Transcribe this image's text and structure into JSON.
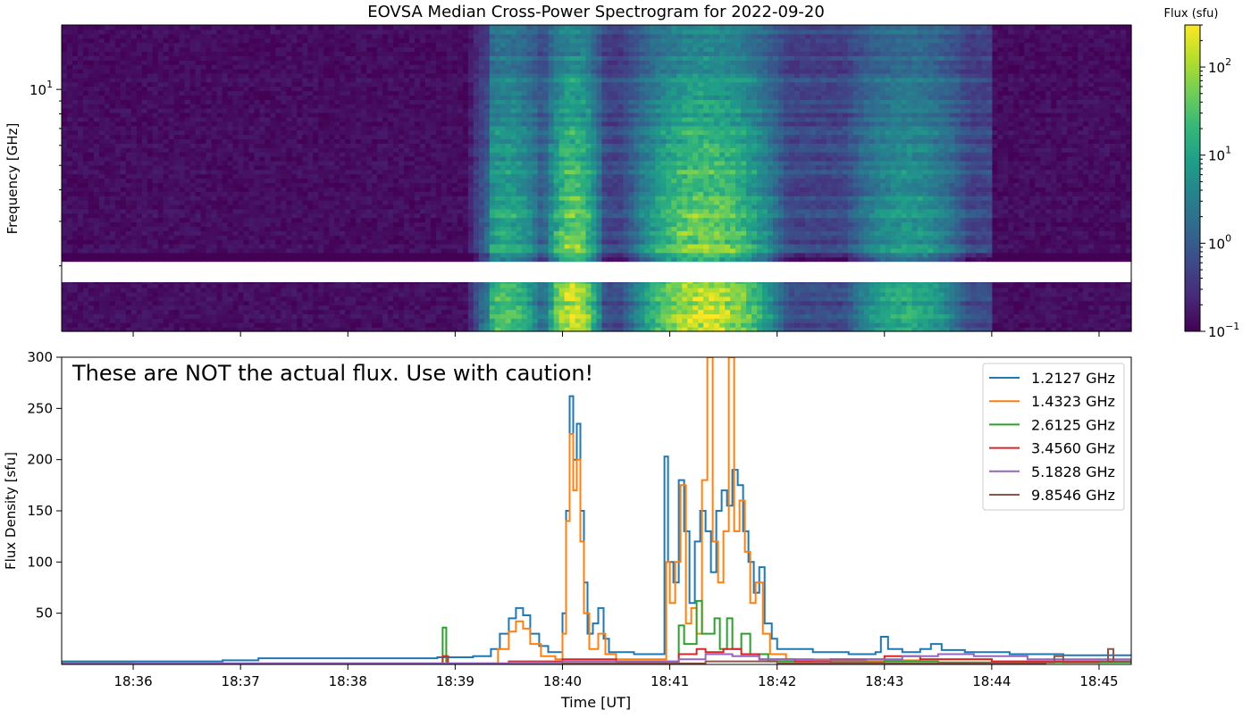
{
  "chart_data": [
    {
      "type": "heatmap",
      "title": "EOVSA Median Cross-Power Spectrogram for 2022-09-20",
      "xlabel": "",
      "ylabel": "Frequency [GHz]",
      "y_scale": "log",
      "y_tick_labels": [
        {
          "label": "10",
          "exponent": "1",
          "value": 10
        }
      ],
      "y_minor_ticks": [
        2,
        3,
        4,
        5,
        6,
        7,
        8,
        9
      ],
      "ylim": [
        1.1,
        18
      ],
      "x_range": [
        "18:35:20",
        "18:45:18"
      ],
      "data_gap_ghz": [
        1.8,
        2.05
      ],
      "colorbar": {
        "label": "Flux (sfu)",
        "scale": "log",
        "range": [
          0.1,
          300
        ],
        "ticks": [
          {
            "label": "10",
            "exponent": "−1",
            "value": 0.1
          },
          {
            "label": "10",
            "exponent": "0",
            "value": 1
          },
          {
            "label": "10",
            "exponent": "1",
            "value": 10
          },
          {
            "label": "10",
            "exponent": "2",
            "value": 100
          }
        ],
        "colormap": [
          "#440154",
          "#482878",
          "#3e4989",
          "#31688e",
          "#26828e",
          "#1f9e89",
          "#35b779",
          "#6ece58",
          "#b5de2b",
          "#fde725"
        ]
      },
      "bursts": [
        {
          "start": "18:39:20",
          "end": "18:39:38",
          "peak_sfu": 50
        },
        {
          "start": "18:40:00",
          "end": "18:40:12",
          "peak_sfu": 260
        },
        {
          "start": "18:40:55",
          "end": "18:41:45",
          "peak_sfu": 300
        },
        {
          "start": "18:42:55",
          "end": "18:43:30",
          "peak_sfu": 25
        }
      ]
    },
    {
      "type": "line",
      "xlabel": "Time [UT]",
      "ylabel": "Flux Density [sfu]",
      "x_range": [
        "18:35:20",
        "18:45:18"
      ],
      "ylim": [
        0,
        300
      ],
      "y_ticks": [
        50,
        100,
        150,
        200,
        250,
        300
      ],
      "x_ticks": [
        "18:36",
        "18:37",
        "18:38",
        "18:39",
        "18:40",
        "18:41",
        "18:42",
        "18:43",
        "18:44",
        "18:45"
      ],
      "annotation": "These are NOT the actual flux. Use with caution!",
      "legend_position": "top-right",
      "series": [
        {
          "name": "1.2127 GHz",
          "color": "#1f77b4",
          "points": [
            [
              "18:35:20",
              3
            ],
            [
              "18:36:30",
              3
            ],
            [
              "18:36:50",
              4
            ],
            [
              "18:37:10",
              6
            ],
            [
              "18:37:40",
              6
            ],
            [
              "18:38:20",
              6
            ],
            [
              "18:38:50",
              7
            ],
            [
              "18:39:10",
              8
            ],
            [
              "18:39:20",
              15
            ],
            [
              "18:39:25",
              30
            ],
            [
              "18:39:30",
              45
            ],
            [
              "18:39:34",
              55
            ],
            [
              "18:39:38",
              48
            ],
            [
              "18:39:42",
              30
            ],
            [
              "18:39:47",
              18
            ],
            [
              "18:39:52",
              12
            ],
            [
              "18:39:58",
              12
            ],
            [
              "18:40:00",
              50
            ],
            [
              "18:40:02",
              150
            ],
            [
              "18:40:04",
              262
            ],
            [
              "18:40:06",
              200
            ],
            [
              "18:40:08",
              235
            ],
            [
              "18:40:10",
              150
            ],
            [
              "18:40:12",
              80
            ],
            [
              "18:40:14",
              30
            ],
            [
              "18:40:17",
              40
            ],
            [
              "18:40:20",
              55
            ],
            [
              "18:40:23",
              25
            ],
            [
              "18:40:26",
              12
            ],
            [
              "18:40:40",
              10
            ],
            [
              "18:40:56",
              10
            ],
            [
              "18:40:57",
              203
            ],
            [
              "18:40:59",
              100
            ],
            [
              "18:41:02",
              80
            ],
            [
              "18:41:05",
              180
            ],
            [
              "18:41:08",
              130
            ],
            [
              "18:41:11",
              60
            ],
            [
              "18:41:14",
              120
            ],
            [
              "18:41:17",
              150
            ],
            [
              "18:41:20",
              130
            ],
            [
              "18:41:23",
              90
            ],
            [
              "18:41:26",
              150
            ],
            [
              "18:41:29",
              170
            ],
            [
              "18:41:32",
              155
            ],
            [
              "18:41:35",
              190
            ],
            [
              "18:41:38",
              175
            ],
            [
              "18:41:41",
              130
            ],
            [
              "18:41:44",
              100
            ],
            [
              "18:41:47",
              70
            ],
            [
              "18:41:50",
              95
            ],
            [
              "18:41:53",
              40
            ],
            [
              "18:41:57",
              25
            ],
            [
              "18:42:00",
              15
            ],
            [
              "18:42:20",
              12
            ],
            [
              "18:42:40",
              10
            ],
            [
              "18:42:55",
              12
            ],
            [
              "18:42:58",
              27
            ],
            [
              "18:43:02",
              15
            ],
            [
              "18:43:10",
              12
            ],
            [
              "18:43:20",
              15
            ],
            [
              "18:43:26",
              20
            ],
            [
              "18:43:32",
              14
            ],
            [
              "18:43:45",
              12
            ],
            [
              "18:44:10",
              10
            ],
            [
              "18:44:40",
              9
            ],
            [
              "18:45:18",
              8
            ]
          ]
        },
        {
          "name": "1.4323 GHz",
          "color": "#ff7f0e",
          "points": [
            [
              "18:35:20",
              0
            ],
            [
              "18:39:18",
              1
            ],
            [
              "18:39:24",
              15
            ],
            [
              "18:39:30",
              32
            ],
            [
              "18:39:34",
              42
            ],
            [
              "18:39:38",
              35
            ],
            [
              "18:39:42",
              20
            ],
            [
              "18:39:48",
              8
            ],
            [
              "18:39:56",
              5
            ],
            [
              "18:40:00",
              30
            ],
            [
              "18:40:02",
              140
            ],
            [
              "18:40:04",
              225
            ],
            [
              "18:40:06",
              170
            ],
            [
              "18:40:08",
              200
            ],
            [
              "18:40:10",
              120
            ],
            [
              "18:40:12",
              50
            ],
            [
              "18:40:15",
              15
            ],
            [
              "18:40:20",
              30
            ],
            [
              "18:40:24",
              10
            ],
            [
              "18:40:30",
              5
            ],
            [
              "18:40:56",
              5
            ],
            [
              "18:40:58",
              100
            ],
            [
              "18:41:00",
              60
            ],
            [
              "18:41:03",
              100
            ],
            [
              "18:41:06",
              175
            ],
            [
              "18:41:09",
              40
            ],
            [
              "18:41:12",
              55
            ],
            [
              "18:41:15",
              30
            ],
            [
              "18:41:18",
              180
            ],
            [
              "18:41:21",
              300
            ],
            [
              "18:41:24",
              120
            ],
            [
              "18:41:27",
              80
            ],
            [
              "18:41:30",
              130
            ],
            [
              "18:41:33",
              300
            ],
            [
              "18:41:36",
              130
            ],
            [
              "18:41:39",
              160
            ],
            [
              "18:41:42",
              110
            ],
            [
              "18:41:45",
              60
            ],
            [
              "18:41:48",
              80
            ],
            [
              "18:41:52",
              30
            ],
            [
              "18:41:56",
              10
            ],
            [
              "18:42:05",
              5
            ],
            [
              "18:42:30",
              3
            ],
            [
              "18:43:00",
              4
            ],
            [
              "18:43:20",
              5
            ],
            [
              "18:44:00",
              3
            ],
            [
              "18:45:18",
              2
            ]
          ]
        },
        {
          "name": "2.6125 GHz",
          "color": "#2ca02c",
          "points": [
            [
              "18:35:20",
              2
            ],
            [
              "18:36:00",
              1
            ],
            [
              "18:38:52",
              1
            ],
            [
              "18:38:53",
              36
            ],
            [
              "18:38:55",
              1
            ],
            [
              "18:39:30",
              2
            ],
            [
              "18:40:00",
              3
            ],
            [
              "18:40:30",
              2
            ],
            [
              "18:41:05",
              38
            ],
            [
              "18:41:08",
              20
            ],
            [
              "18:41:15",
              62
            ],
            [
              "18:41:18",
              30
            ],
            [
              "18:41:25",
              45
            ],
            [
              "18:41:28",
              15
            ],
            [
              "18:41:32",
              45
            ],
            [
              "18:41:35",
              15
            ],
            [
              "18:41:40",
              30
            ],
            [
              "18:41:45",
              10
            ],
            [
              "18:41:55",
              3
            ],
            [
              "18:42:30",
              2
            ],
            [
              "18:43:00",
              3
            ],
            [
              "18:43:30",
              2
            ],
            [
              "18:45:18",
              1
            ]
          ]
        },
        {
          "name": "3.4560 GHz",
          "color": "#d62728",
          "points": [
            [
              "18:35:20",
              1
            ],
            [
              "18:38:52",
              1
            ],
            [
              "18:38:53",
              8
            ],
            [
              "18:38:56",
              1
            ],
            [
              "18:39:30",
              3
            ],
            [
              "18:40:00",
              5
            ],
            [
              "18:40:30",
              3
            ],
            [
              "18:41:05",
              10
            ],
            [
              "18:41:15",
              15
            ],
            [
              "18:41:20",
              12
            ],
            [
              "18:41:30",
              15
            ],
            [
              "18:41:40",
              10
            ],
            [
              "18:41:50",
              5
            ],
            [
              "18:42:10",
              3
            ],
            [
              "18:42:30",
              5
            ],
            [
              "18:43:00",
              8
            ],
            [
              "18:43:20",
              5
            ],
            [
              "18:44:00",
              3
            ],
            [
              "18:45:18",
              2
            ]
          ]
        },
        {
          "name": "5.1828 GHz",
          "color": "#9467bd",
          "points": [
            [
              "18:35:20",
              1
            ],
            [
              "18:38:50",
              1
            ],
            [
              "18:39:30",
              2
            ],
            [
              "18:40:00",
              3
            ],
            [
              "18:40:30",
              3
            ],
            [
              "18:41:05",
              5
            ],
            [
              "18:41:20",
              10
            ],
            [
              "18:41:35",
              8
            ],
            [
              "18:41:50",
              5
            ],
            [
              "18:42:20",
              4
            ],
            [
              "18:42:50",
              5
            ],
            [
              "18:43:10",
              8
            ],
            [
              "18:43:30",
              10
            ],
            [
              "18:43:50",
              8
            ],
            [
              "18:44:20",
              5
            ],
            [
              "18:45:18",
              3
            ]
          ]
        },
        {
          "name": "9.8546 GHz",
          "color": "#8c564b",
          "points": [
            [
              "18:35:20",
              0
            ],
            [
              "18:40:00",
              1
            ],
            [
              "18:41:20",
              3
            ],
            [
              "18:42:00",
              1
            ],
            [
              "18:44:30",
              2
            ],
            [
              "18:44:35",
              8
            ],
            [
              "18:44:40",
              2
            ],
            [
              "18:45:00",
              3
            ],
            [
              "18:45:05",
              15
            ],
            [
              "18:45:08",
              3
            ],
            [
              "18:45:18",
              2
            ]
          ]
        }
      ]
    }
  ]
}
